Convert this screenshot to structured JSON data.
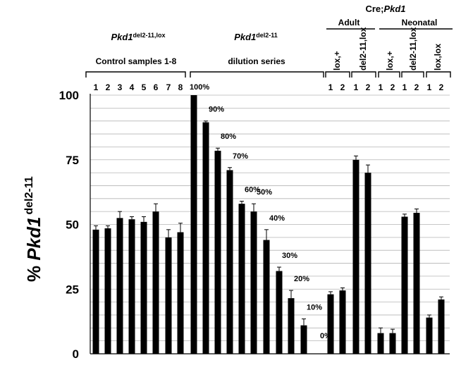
{
  "chart_data": {
    "type": "bar",
    "ylabel_prefix": "%",
    "ylabel_gene": "Pkd1",
    "ylabel_sup": "del2-11",
    "ylim": [
      0,
      100
    ],
    "yticks": [
      "0",
      "25",
      "50",
      "75",
      "100"
    ],
    "grid": true,
    "bar_color": "#000000",
    "categories": [
      "1",
      "2",
      "3",
      "4",
      "5",
      "6",
      "7",
      "8",
      "100%",
      "90%",
      "80%",
      "70%",
      "60%",
      "50%",
      "40%",
      "30%",
      "20%",
      "10%",
      "0%",
      "1",
      "2",
      "1",
      "2",
      "1",
      "2",
      "1",
      "2",
      "1",
      "2"
    ],
    "values": [
      48,
      48.5,
      52.5,
      52,
      51,
      55,
      45,
      47,
      100,
      89.5,
      78.5,
      71,
      58,
      55,
      44,
      32,
      21.5,
      11,
      0,
      23,
      24.5,
      75,
      70,
      8,
      8,
      53,
      54.5,
      14,
      21
    ],
    "errors": [
      1.5,
      1,
      2.5,
      1,
      2,
      3,
      3,
      3.5,
      0,
      0.5,
      1,
      1,
      1,
      3,
      4,
      1.5,
      3,
      2.5,
      0,
      1,
      1,
      1.5,
      3,
      2,
      1.5,
      1,
      1.5,
      1,
      1
    ],
    "groups": [
      {
        "gene": "Pkd1",
        "sup": "del2-11,lox",
        "caption": "Control samples 1-8",
        "ticks": [
          "1",
          "2",
          "3",
          "4",
          "5",
          "6",
          "7",
          "8"
        ]
      },
      {
        "gene": "Pkd1",
        "sup": "del2-11",
        "caption": "dilution series"
      }
    ],
    "cre_title_prefix": "Cre;",
    "cre_title_gene": "Pkd1",
    "stage_labels": [
      "Adult",
      "Neonatal"
    ],
    "genotypes": [
      "lox,+",
      "del2-11,lox",
      "lox,+",
      "del2-11,lox",
      "lox,lox"
    ],
    "genotype_ticks": [
      "1",
      "2"
    ]
  }
}
